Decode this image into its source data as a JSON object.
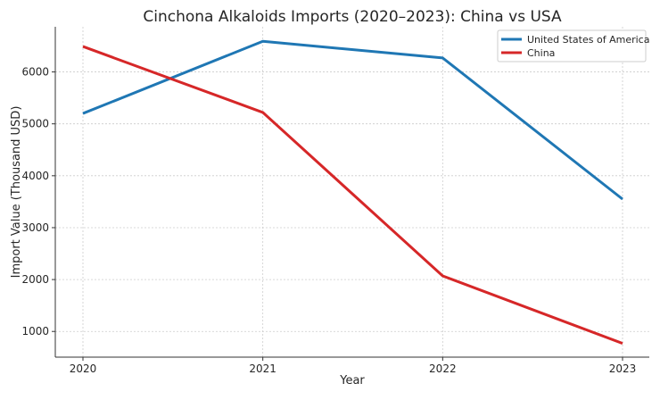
{
  "chart_data": {
    "type": "line",
    "title": "Cinchona Alkaloids Imports (2020–2023): China vs USA",
    "xlabel": "Year",
    "ylabel": "Import Value (Thousand USD)",
    "x": [
      "2020",
      "2021",
      "2022",
      "2023"
    ],
    "yticks": [
      1000,
      2000,
      3000,
      4000,
      5000,
      6000
    ],
    "ylim": [
      505,
      6870
    ],
    "grid": true,
    "legend": "top-right",
    "series": [
      {
        "name": "United States of America",
        "color": "#1f77b4",
        "values": [
          5200,
          6590,
          6270,
          3550
        ]
      },
      {
        "name": "China",
        "color": "#d62728",
        "values": [
          6490,
          5220,
          2070,
          770
        ]
      }
    ]
  }
}
